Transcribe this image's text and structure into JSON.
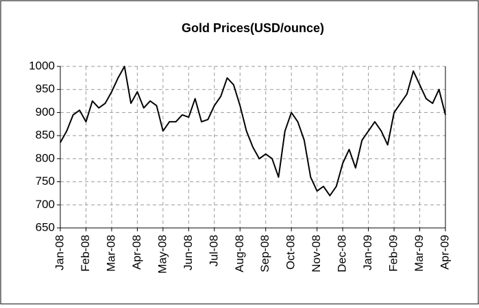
{
  "chart_data": {
    "type": "line",
    "title": "Gold Prices(USD/ounce)",
    "categories": [
      "Jan-08",
      null,
      null,
      null,
      "Feb-08",
      null,
      null,
      null,
      "Mar-08",
      null,
      null,
      null,
      "Apr-08",
      null,
      null,
      null,
      "May-08",
      null,
      null,
      null,
      "Jun-08",
      null,
      null,
      null,
      "Jul-08",
      null,
      null,
      null,
      "Aug-08",
      null,
      null,
      null,
      "Sep-08",
      null,
      null,
      null,
      "Oct-08",
      null,
      null,
      null,
      "Nov-08",
      null,
      null,
      null,
      "Dec-08",
      null,
      null,
      null,
      "Jan-09",
      null,
      null,
      null,
      "Feb-09",
      null,
      null,
      null,
      "Mar-09",
      null,
      null,
      null,
      "Apr-09"
    ],
    "series": [
      {
        "name": "Gold",
        "color": "#000000",
        "values": [
          835,
          860,
          895,
          905,
          880,
          925,
          910,
          920,
          945,
          975,
          1000,
          920,
          945,
          910,
          925,
          915,
          860,
          880,
          880,
          895,
          890,
          930,
          880,
          885,
          915,
          935,
          975,
          960,
          915,
          860,
          825,
          800,
          810,
          800,
          760,
          860,
          900,
          880,
          840,
          760,
          730,
          740,
          720,
          740,
          790,
          820,
          780,
          840,
          860,
          880,
          860,
          830,
          900,
          920,
          940,
          990,
          960,
          930,
          920,
          950,
          895
        ]
      }
    ],
    "ylim": [
      650,
      1000
    ],
    "yticks": [
      650,
      700,
      750,
      800,
      850,
      900,
      950,
      1000
    ],
    "grid": true
  }
}
